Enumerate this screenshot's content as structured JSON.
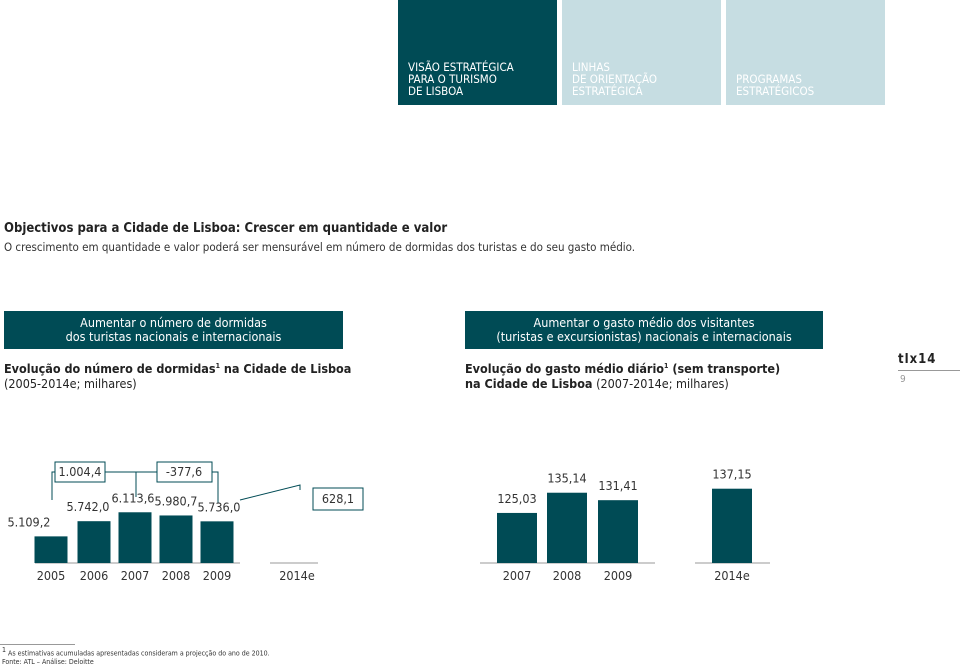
{
  "tabs": [
    {
      "lines": [
        "VISÃO ESTRATÉGICA",
        "PARA O TURISMO",
        "DE LISBOA"
      ]
    },
    {
      "lines": [
        "LINHAS",
        "DE ORIENTAÇÃO",
        "ESTRATÉGICA"
      ]
    },
    {
      "lines": [
        "PROGRAMAS",
        "ESTRATÉGICOS"
      ]
    }
  ],
  "heading": "Objectivos para a Cidade de Lisboa: Crescer em quantidade e valor",
  "intro": "O crescimento em quantidade e valor poderá ser mensurável em número de dormidas dos turistas e do seu gasto médio.",
  "sections": [
    {
      "box": [
        "Aumentar o número de dormidas",
        "dos turistas nacionais e internacionais"
      ],
      "chart": {
        "type": "bar",
        "title": [
          "Evolução do número de dormidas",
          "1",
          " na Cidade de Lisboa"
        ],
        "subtitle": "(2005-2014e; milhares)",
        "categories": [
          "2005",
          "2006",
          "2007",
          "2008",
          "2009",
          "2014e"
        ],
        "values": [
          5109.2,
          5742.0,
          6113.6,
          5980.7,
          5736.0,
          null
        ],
        "value_labels": [
          "5.109,2",
          "5.742,0",
          "6.113,6",
          "5.980,7",
          "5.736,0",
          null
        ],
        "annotations": [
          "1.004,4",
          "-377,6",
          "628,1"
        ],
        "color": "#004b55"
      }
    },
    {
      "box": [
        "Aumentar o gasto médio dos visitantes",
        "(turistas e excursionistas) nacionais e internacionais"
      ],
      "chart": {
        "type": "bar",
        "title": [
          "Evolução do gasto médio diário",
          "1",
          " (sem transporte)",
          "na Cidade de Lisboa"
        ],
        "subtitle": "(2007-2014e; milhares)",
        "categories": [
          "2007",
          "2008",
          "2009",
          "2014e"
        ],
        "values": [
          125.03,
          135.14,
          131.41,
          137.15
        ],
        "value_labels": [
          "125,03",
          "135,14",
          "131,41",
          "137,15"
        ],
        "color": "#004b55"
      }
    }
  ],
  "logo": "tlx14",
  "page_number": "9",
  "footnote": {
    "marker": "1",
    "text": "As estimativas acumuladas apresentadas consideram a projecção do ano de 2010."
  },
  "source": "Fonte: ATL – Análise: Deloitte"
}
